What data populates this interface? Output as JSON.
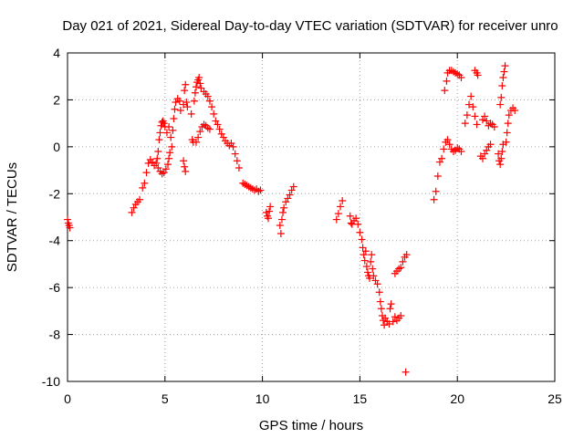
{
  "chart_data": {
    "type": "scatter",
    "title": "Day 021 of 2021, Sidereal Day-to-day VTEC variation (SDTVAR) for receiver unro",
    "xlabel": "GPS time / hours",
    "ylabel": "SDTVAR / TECUs",
    "xlim": [
      0,
      25
    ],
    "ylim": [
      -10,
      4
    ],
    "xticks": [
      0,
      5,
      10,
      15,
      20,
      25
    ],
    "yticks": [
      -10,
      -8,
      -6,
      -4,
      -2,
      0,
      2,
      4
    ],
    "xtick_labels": [
      "0",
      "5",
      "10",
      "15",
      "20",
      "25"
    ],
    "ytick_labels": [
      "-10",
      "-8",
      "-6",
      "-4",
      "-2",
      "0",
      "2",
      "4"
    ],
    "grid": true,
    "marker": "+",
    "color": "#ff0000",
    "series": [
      {
        "name": "SDTVAR",
        "points": [
          [
            0.0,
            -3.1
          ],
          [
            0.04,
            -3.25
          ],
          [
            0.08,
            -3.35
          ],
          [
            0.12,
            -3.45
          ],
          [
            3.3,
            -2.8
          ],
          [
            3.4,
            -2.6
          ],
          [
            3.5,
            -2.45
          ],
          [
            3.6,
            -2.35
          ],
          [
            3.7,
            -2.25
          ],
          [
            3.85,
            -1.75
          ],
          [
            3.95,
            -1.55
          ],
          [
            4.05,
            -1.1
          ],
          [
            4.15,
            -0.7
          ],
          [
            4.25,
            -0.55
          ],
          [
            4.35,
            -0.65
          ],
          [
            4.45,
            -0.8
          ],
          [
            4.55,
            -0.7
          ],
          [
            4.6,
            -0.5
          ],
          [
            4.65,
            -0.2
          ],
          [
            4.7,
            0.3
          ],
          [
            4.75,
            0.6
          ],
          [
            4.8,
            0.9
          ],
          [
            4.85,
            1.05
          ],
          [
            4.9,
            1.1
          ],
          [
            4.95,
            1.0
          ],
          [
            5.0,
            0.85
          ],
          [
            4.65,
            -0.9
          ],
          [
            4.75,
            -1.05
          ],
          [
            4.85,
            -1.15
          ],
          [
            4.95,
            -1.1
          ],
          [
            5.05,
            -0.95
          ],
          [
            5.15,
            -0.75
          ],
          [
            5.2,
            -0.5
          ],
          [
            5.25,
            -0.25
          ],
          [
            5.1,
            0.6
          ],
          [
            5.2,
            0.85
          ],
          [
            5.3,
            0.4
          ],
          [
            5.35,
            0.0
          ],
          [
            5.4,
            0.7
          ],
          [
            5.45,
            1.2
          ],
          [
            5.5,
            1.6
          ],
          [
            5.55,
            1.9
          ],
          [
            5.65,
            2.05
          ],
          [
            5.75,
            1.95
          ],
          [
            5.8,
            1.55
          ],
          [
            5.95,
            1.8
          ],
          [
            6.0,
            2.4
          ],
          [
            6.05,
            2.65
          ],
          [
            6.1,
            1.9
          ],
          [
            6.15,
            1.7
          ],
          [
            5.95,
            -0.6
          ],
          [
            6.0,
            -0.85
          ],
          [
            6.05,
            -1.05
          ],
          [
            6.35,
            1.4
          ],
          [
            6.4,
            0.3
          ],
          [
            6.45,
            0.2
          ],
          [
            6.5,
            1.95
          ],
          [
            6.55,
            2.3
          ],
          [
            6.6,
            2.55
          ],
          [
            6.65,
            2.75
          ],
          [
            6.7,
            2.85
          ],
          [
            6.75,
            2.95
          ],
          [
            6.8,
            2.7
          ],
          [
            6.85,
            2.5
          ],
          [
            6.6,
            0.2
          ],
          [
            6.7,
            0.4
          ],
          [
            6.8,
            0.65
          ],
          [
            6.9,
            0.85
          ],
          [
            7.0,
            0.95
          ],
          [
            7.1,
            0.9
          ],
          [
            7.2,
            0.8
          ],
          [
            7.3,
            0.75
          ],
          [
            7.0,
            2.35
          ],
          [
            7.1,
            2.25
          ],
          [
            7.2,
            2.15
          ],
          [
            7.3,
            1.95
          ],
          [
            7.4,
            1.7
          ],
          [
            7.5,
            1.4
          ],
          [
            7.6,
            1.1
          ],
          [
            7.7,
            0.95
          ],
          [
            7.8,
            0.75
          ],
          [
            7.9,
            0.55
          ],
          [
            8.0,
            0.4
          ],
          [
            8.1,
            0.25
          ],
          [
            8.2,
            0.15
          ],
          [
            8.3,
            0.05
          ],
          [
            8.4,
            0.15
          ],
          [
            8.5,
            0.0
          ],
          [
            8.6,
            -0.3
          ],
          [
            8.7,
            -0.6
          ],
          [
            8.8,
            -0.9
          ],
          [
            9.0,
            -1.55
          ],
          [
            9.1,
            -1.6
          ],
          [
            9.2,
            -1.65
          ],
          [
            9.3,
            -1.7
          ],
          [
            9.4,
            -1.75
          ],
          [
            9.5,
            -1.8
          ],
          [
            9.6,
            -1.85
          ],
          [
            9.7,
            -1.8
          ],
          [
            9.8,
            -1.9
          ],
          [
            9.9,
            -1.85
          ],
          [
            10.2,
            -2.8
          ],
          [
            10.25,
            -2.95
          ],
          [
            10.3,
            -3.05
          ],
          [
            10.35,
            -2.75
          ],
          [
            10.4,
            -2.55
          ],
          [
            10.9,
            -3.35
          ],
          [
            10.95,
            -3.7
          ],
          [
            11.0,
            -3.1
          ],
          [
            11.05,
            -2.8
          ],
          [
            11.1,
            -2.6
          ],
          [
            11.2,
            -2.35
          ],
          [
            11.3,
            -2.2
          ],
          [
            11.4,
            -2.05
          ],
          [
            11.5,
            -1.85
          ],
          [
            11.6,
            -1.7
          ],
          [
            13.8,
            -3.1
          ],
          [
            13.9,
            -2.85
          ],
          [
            14.0,
            -2.55
          ],
          [
            14.1,
            -2.3
          ],
          [
            14.5,
            -2.95
          ],
          [
            14.55,
            -3.25
          ],
          [
            14.6,
            -3.3
          ],
          [
            14.7,
            -3.15
          ],
          [
            14.8,
            -3.05
          ],
          [
            14.9,
            -3.3
          ],
          [
            15.0,
            -3.65
          ],
          [
            15.1,
            -3.95
          ],
          [
            15.15,
            -4.3
          ],
          [
            15.2,
            -4.6
          ],
          [
            15.25,
            -4.85
          ],
          [
            15.3,
            -4.45
          ],
          [
            15.35,
            -5.1
          ],
          [
            15.4,
            -5.35
          ],
          [
            15.45,
            -5.5
          ],
          [
            15.5,
            -5.6
          ],
          [
            15.55,
            -4.9
          ],
          [
            15.6,
            -4.6
          ],
          [
            15.65,
            -5.2
          ],
          [
            15.7,
            -5.5
          ],
          [
            15.8,
            -5.7
          ],
          [
            15.9,
            -5.85
          ],
          [
            16.0,
            -6.2
          ],
          [
            16.05,
            -6.6
          ],
          [
            16.1,
            -6.9
          ],
          [
            16.15,
            -7.2
          ],
          [
            16.2,
            -7.4
          ],
          [
            16.25,
            -7.6
          ],
          [
            16.3,
            -7.3
          ],
          [
            16.4,
            -7.45
          ],
          [
            16.5,
            -7.55
          ],
          [
            16.55,
            -6.9
          ],
          [
            16.6,
            -6.7
          ],
          [
            16.7,
            -7.45
          ],
          [
            16.8,
            -7.25
          ],
          [
            16.9,
            -7.4
          ],
          [
            17.0,
            -7.3
          ],
          [
            17.1,
            -7.2
          ],
          [
            17.35,
            -9.6
          ],
          [
            16.8,
            -5.4
          ],
          [
            16.9,
            -5.3
          ],
          [
            17.0,
            -5.2
          ],
          [
            17.1,
            -5.15
          ],
          [
            17.2,
            -4.9
          ],
          [
            17.3,
            -4.7
          ],
          [
            17.4,
            -4.6
          ],
          [
            18.8,
            -2.25
          ],
          [
            18.9,
            -1.9
          ],
          [
            19.0,
            -1.25
          ],
          [
            19.1,
            -0.65
          ],
          [
            19.2,
            -0.5
          ],
          [
            19.3,
            -0.1
          ],
          [
            19.4,
            0.2
          ],
          [
            19.5,
            0.3
          ],
          [
            19.6,
            0.1
          ],
          [
            19.7,
            -0.1
          ],
          [
            19.8,
            -0.2
          ],
          [
            19.9,
            -0.15
          ],
          [
            20.0,
            -0.05
          ],
          [
            20.1,
            -0.1
          ],
          [
            20.2,
            -0.2
          ],
          [
            19.35,
            2.4
          ],
          [
            19.45,
            2.8
          ],
          [
            19.5,
            3.15
          ],
          [
            19.6,
            3.25
          ],
          [
            19.7,
            3.25
          ],
          [
            19.8,
            3.2
          ],
          [
            19.9,
            3.15
          ],
          [
            20.0,
            3.1
          ],
          [
            20.1,
            3.05
          ],
          [
            20.2,
            2.95
          ],
          [
            20.4,
            1.0
          ],
          [
            20.5,
            1.35
          ],
          [
            20.6,
            1.8
          ],
          [
            20.7,
            2.15
          ],
          [
            20.8,
            1.7
          ],
          [
            20.9,
            1.3
          ],
          [
            21.0,
            0.95
          ],
          [
            20.9,
            3.25
          ],
          [
            21.0,
            3.15
          ],
          [
            21.05,
            3.05
          ],
          [
            21.2,
            -0.4
          ],
          [
            21.3,
            -0.5
          ],
          [
            21.4,
            -0.3
          ],
          [
            21.5,
            -0.15
          ],
          [
            21.6,
            0.0
          ],
          [
            21.7,
            0.1
          ],
          [
            21.3,
            1.15
          ],
          [
            21.4,
            1.3
          ],
          [
            21.5,
            1.1
          ],
          [
            21.6,
            0.9
          ],
          [
            21.7,
            1.0
          ],
          [
            21.8,
            0.95
          ],
          [
            21.9,
            0.85
          ],
          [
            22.1,
            -0.3
          ],
          [
            22.15,
            -0.6
          ],
          [
            22.2,
            -0.75
          ],
          [
            22.25,
            -0.5
          ],
          [
            22.3,
            -0.2
          ],
          [
            22.35,
            0.1
          ],
          [
            22.2,
            1.8
          ],
          [
            22.25,
            2.1
          ],
          [
            22.3,
            2.6
          ],
          [
            22.35,
            2.95
          ],
          [
            22.4,
            3.2
          ],
          [
            22.45,
            3.45
          ],
          [
            22.5,
            0.2
          ],
          [
            22.55,
            0.6
          ],
          [
            22.6,
            1.0
          ],
          [
            22.65,
            1.35
          ],
          [
            22.75,
            1.55
          ],
          [
            22.85,
            1.65
          ],
          [
            22.95,
            1.55
          ]
        ]
      }
    ]
  }
}
